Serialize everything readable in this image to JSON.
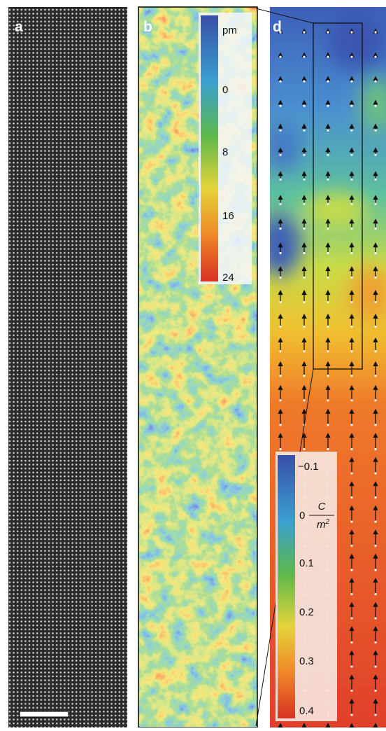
{
  "panels": [
    {
      "label": "a"
    },
    {
      "label": "b",
      "colorbar": {
        "unit": "pm",
        "ticks": [
          "0",
          "8",
          "16",
          "24"
        ]
      }
    },
    {
      "label": "d",
      "colorbar": {
        "ticks": [
          "−0.1",
          "0",
          "0.1",
          "0.2",
          "0.3",
          "0.4"
        ],
        "unit": {
          "numerator": "C",
          "denominator": "m",
          "exponent": "2"
        }
      }
    }
  ]
}
